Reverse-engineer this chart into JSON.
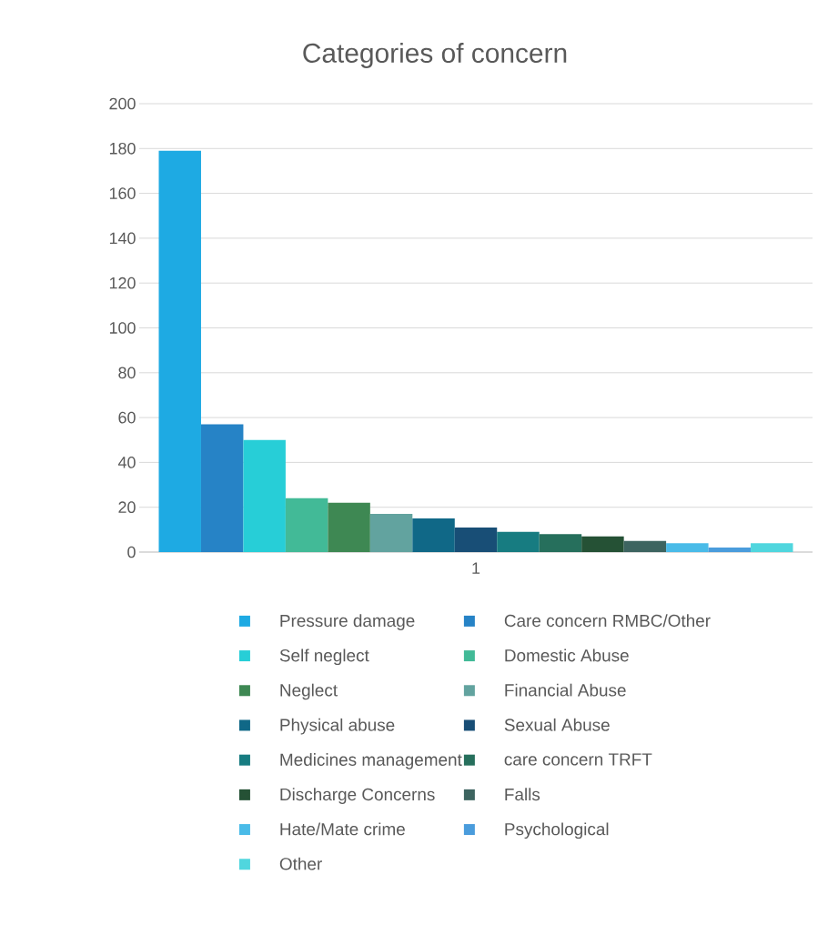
{
  "chart_data": {
    "type": "bar",
    "title": "Categories of concern",
    "categories": [
      "1"
    ],
    "series": [
      {
        "name": "Pressure damage",
        "color": "#1eaae3",
        "values": [
          179
        ]
      },
      {
        "name": "Care concern RMBC/Other",
        "color": "#2683c6",
        "values": [
          57
        ]
      },
      {
        "name": "Self neglect",
        "color": "#27ced7",
        "values": [
          50
        ]
      },
      {
        "name": "Domestic Abuse",
        "color": "#42ba97",
        "values": [
          24
        ]
      },
      {
        "name": "Neglect",
        "color": "#3e8853",
        "values": [
          22
        ]
      },
      {
        "name": "Financial Abuse",
        "color": "#62a39f",
        "values": [
          17
        ]
      },
      {
        "name": "Physical abuse",
        "color": "#106887",
        "values": [
          15
        ]
      },
      {
        "name": "Sexual Abuse",
        "color": "#184e76",
        "values": [
          11
        ]
      },
      {
        "name": "Medicines management",
        "color": "#177c81",
        "values": [
          9
        ]
      },
      {
        "name": "care concern TRFT",
        "color": "#266f5c",
        "values": [
          8
        ]
      },
      {
        "name": "Discharge Concerns",
        "color": "#255135",
        "values": [
          7
        ]
      },
      {
        "name": "Falls",
        "color": "#3d6460",
        "values": [
          5
        ]
      },
      {
        "name": "Hate/Mate crime",
        "color": "#4abbe8",
        "values": [
          4
        ]
      },
      {
        "name": "Psychological",
        "color": "#4a9cdc",
        "values": [
          2
        ]
      },
      {
        "name": "Other",
        "color": "#50d6de",
        "values": [
          4
        ]
      }
    ],
    "ylim": [
      0,
      200
    ],
    "yticks": [
      0,
      20,
      40,
      60,
      80,
      100,
      120,
      140,
      160,
      180,
      200
    ],
    "grid": "y",
    "legend": "bottom"
  }
}
